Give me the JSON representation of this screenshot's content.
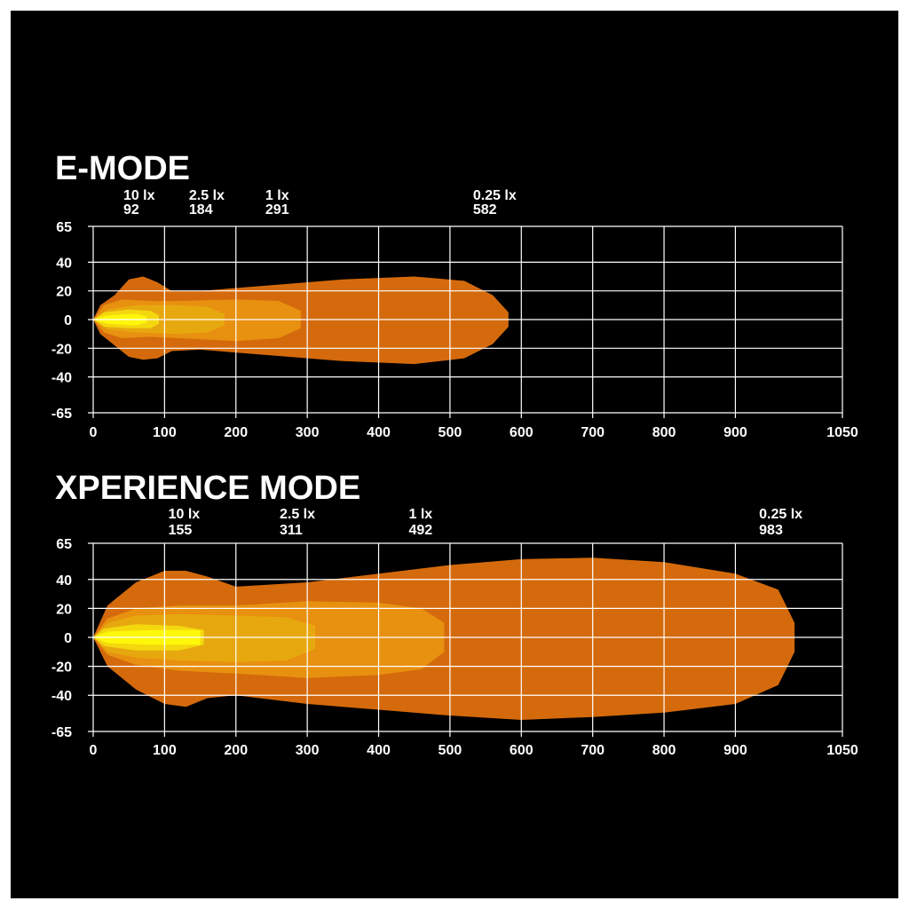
{
  "colors": {
    "background": "#000000",
    "grid": "#ffffff",
    "lux_0_25": "#d46a0c",
    "lux_1": "#e8900f",
    "lux_2_5": "#e7a80f",
    "lux_10": "#f4d80e",
    "core": "#fff70a"
  },
  "chart_data": [
    {
      "type": "area",
      "title": "E-MODE",
      "xlim": [
        0,
        1050
      ],
      "ylim": [
        -65,
        65
      ],
      "x_ticks": [
        "0",
        "100",
        "200",
        "300",
        "400",
        "500",
        "600",
        "700",
        "800",
        "900",
        "1050"
      ],
      "y_ticks": [
        "65",
        "40",
        "20",
        "0",
        "-20",
        "-40",
        "-65"
      ],
      "grid": true,
      "annotations": [
        {
          "lux": "10 lx",
          "distance": "92",
          "x": 92
        },
        {
          "lux": "2.5 lx",
          "distance": "184",
          "x": 184
        },
        {
          "lux": "1 lx",
          "distance": "291",
          "x": 291
        },
        {
          "lux": "0.25 lx",
          "distance": "582",
          "x": 582
        }
      ],
      "series": [
        {
          "color": "lux_0_25",
          "outline": [
            [
              0,
              0
            ],
            [
              10,
              10
            ],
            [
              30,
              17
            ],
            [
              50,
              28
            ],
            [
              70,
              30
            ],
            [
              90,
              26
            ],
            [
              110,
              20
            ],
            [
              150,
              20
            ],
            [
              250,
              24
            ],
            [
              350,
              28
            ],
            [
              450,
              30
            ],
            [
              520,
              27
            ],
            [
              560,
              17
            ],
            [
              582,
              5
            ],
            [
              582,
              -5
            ],
            [
              560,
              -17
            ],
            [
              520,
              -27
            ],
            [
              450,
              -31
            ],
            [
              350,
              -29
            ],
            [
              250,
              -25
            ],
            [
              150,
              -21
            ],
            [
              110,
              -22
            ],
            [
              90,
              -27
            ],
            [
              70,
              -28
            ],
            [
              50,
              -26
            ],
            [
              30,
              -18
            ],
            [
              10,
              -10
            ]
          ]
        },
        {
          "color": "lux_1",
          "outline": [
            [
              0,
              0
            ],
            [
              15,
              10
            ],
            [
              40,
              14
            ],
            [
              80,
              13
            ],
            [
              120,
              13
            ],
            [
              200,
              14
            ],
            [
              260,
              13
            ],
            [
              291,
              6
            ],
            [
              291,
              -6
            ],
            [
              260,
              -13
            ],
            [
              200,
              -15
            ],
            [
              120,
              -13
            ],
            [
              80,
              -12
            ],
            [
              40,
              -13
            ],
            [
              15,
              -9
            ]
          ]
        },
        {
          "color": "lux_2_5",
          "outline": [
            [
              0,
              0
            ],
            [
              20,
              7
            ],
            [
              60,
              10
            ],
            [
              120,
              10
            ],
            [
              160,
              9
            ],
            [
              184,
              4
            ],
            [
              184,
              -4
            ],
            [
              160,
              -9
            ],
            [
              120,
              -10
            ],
            [
              60,
              -9
            ],
            [
              20,
              -7
            ]
          ]
        },
        {
          "color": "lux_10",
          "outline": [
            [
              0,
              0
            ],
            [
              15,
              5
            ],
            [
              50,
              7
            ],
            [
              80,
              6
            ],
            [
              92,
              3
            ],
            [
              92,
              -3
            ],
            [
              80,
              -6
            ],
            [
              50,
              -6
            ],
            [
              15,
              -5
            ]
          ]
        },
        {
          "color": "core",
          "outline": [
            [
              0,
              0
            ],
            [
              20,
              3
            ],
            [
              60,
              4
            ],
            [
              75,
              2
            ],
            [
              75,
              -2
            ],
            [
              60,
              -4
            ],
            [
              20,
              -3
            ]
          ]
        }
      ]
    },
    {
      "type": "area",
      "title": "XPERIENCE MODE",
      "xlim": [
        0,
        1050
      ],
      "ylim": [
        -65,
        65
      ],
      "x_ticks": [
        "0",
        "100",
        "200",
        "300",
        "400",
        "500",
        "600",
        "700",
        "800",
        "900",
        "1050"
      ],
      "y_ticks": [
        "65",
        "40",
        "20",
        "0",
        "-20",
        "-40",
        "-65"
      ],
      "grid": true,
      "annotations": [
        {
          "lux": "10 lx",
          "distance": "155",
          "x": 155
        },
        {
          "lux": "2.5 lx",
          "distance": "311",
          "x": 311
        },
        {
          "lux": "1 lx",
          "distance": "492",
          "x": 492
        },
        {
          "lux": "0.25 lx",
          "distance": "983",
          "x": 983
        }
      ],
      "series": [
        {
          "color": "lux_0_25",
          "outline": [
            [
              0,
              0
            ],
            [
              20,
              22
            ],
            [
              60,
              38
            ],
            [
              100,
              46
            ],
            [
              130,
              46
            ],
            [
              160,
              42
            ],
            [
              200,
              35
            ],
            [
              300,
              38
            ],
            [
              400,
              44
            ],
            [
              500,
              50
            ],
            [
              600,
              54
            ],
            [
              700,
              55
            ],
            [
              800,
              52
            ],
            [
              900,
              44
            ],
            [
              960,
              33
            ],
            [
              983,
              10
            ],
            [
              983,
              -10
            ],
            [
              960,
              -33
            ],
            [
              900,
              -46
            ],
            [
              800,
              -52
            ],
            [
              700,
              -55
            ],
            [
              600,
              -57
            ],
            [
              500,
              -54
            ],
            [
              400,
              -50
            ],
            [
              300,
              -46
            ],
            [
              200,
              -40
            ],
            [
              160,
              -42
            ],
            [
              130,
              -48
            ],
            [
              100,
              -46
            ],
            [
              60,
              -36
            ],
            [
              20,
              -20
            ]
          ]
        },
        {
          "color": "lux_1",
          "outline": [
            [
              0,
              0
            ],
            [
              20,
              13
            ],
            [
              60,
              20
            ],
            [
              120,
              22
            ],
            [
              200,
              22
            ],
            [
              300,
              25
            ],
            [
              400,
              24
            ],
            [
              460,
              20
            ],
            [
              492,
              10
            ],
            [
              492,
              -10
            ],
            [
              460,
              -22
            ],
            [
              400,
              -26
            ],
            [
              300,
              -28
            ],
            [
              200,
              -25
            ],
            [
              120,
              -23
            ],
            [
              60,
              -19
            ],
            [
              20,
              -12
            ]
          ]
        },
        {
          "color": "lux_2_5",
          "outline": [
            [
              0,
              0
            ],
            [
              20,
              10
            ],
            [
              60,
              15
            ],
            [
              120,
              16
            ],
            [
              200,
              15
            ],
            [
              270,
              14
            ],
            [
              311,
              8
            ],
            [
              311,
              -8
            ],
            [
              270,
              -16
            ],
            [
              200,
              -17
            ],
            [
              120,
              -16
            ],
            [
              60,
              -14
            ],
            [
              20,
              -10
            ]
          ]
        },
        {
          "color": "lux_10",
          "outline": [
            [
              0,
              0
            ],
            [
              15,
              6
            ],
            [
              60,
              9
            ],
            [
              120,
              8
            ],
            [
              155,
              5
            ],
            [
              155,
              -5
            ],
            [
              120,
              -9
            ],
            [
              60,
              -9
            ],
            [
              15,
              -6
            ]
          ]
        },
        {
          "color": "core",
          "outline": [
            [
              0,
              0
            ],
            [
              20,
              4
            ],
            [
              80,
              5
            ],
            [
              150,
              5
            ],
            [
              150,
              -5
            ],
            [
              80,
              -5
            ],
            [
              20,
              -4
            ]
          ]
        }
      ]
    }
  ]
}
